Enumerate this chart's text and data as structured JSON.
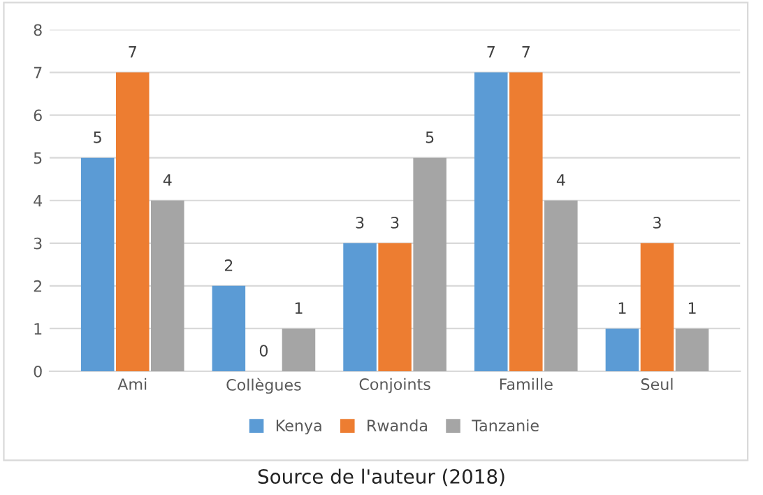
{
  "chart_data": {
    "type": "bar",
    "categories": [
      "Ami",
      "Collègues",
      "Conjoints",
      "Famille",
      "Seul"
    ],
    "series": [
      {
        "name": "Kenya",
        "color": "#5b9bd5",
        "values": [
          5,
          2,
          3,
          7,
          1
        ]
      },
      {
        "name": "Rwanda",
        "color": "#ed7d31",
        "values": [
          7,
          0,
          3,
          7,
          3
        ]
      },
      {
        "name": "Tanzanie",
        "color": "#a5a5a5",
        "values": [
          4,
          1,
          5,
          4,
          1
        ]
      }
    ],
    "ylim": [
      0,
      8
    ],
    "yticks": [
      0,
      1,
      2,
      3,
      4,
      5,
      6,
      7,
      8
    ],
    "grid": "y",
    "legend": "bottom",
    "data_labels": true,
    "annotations": [
      "Source de l'auteur (2018)"
    ]
  }
}
